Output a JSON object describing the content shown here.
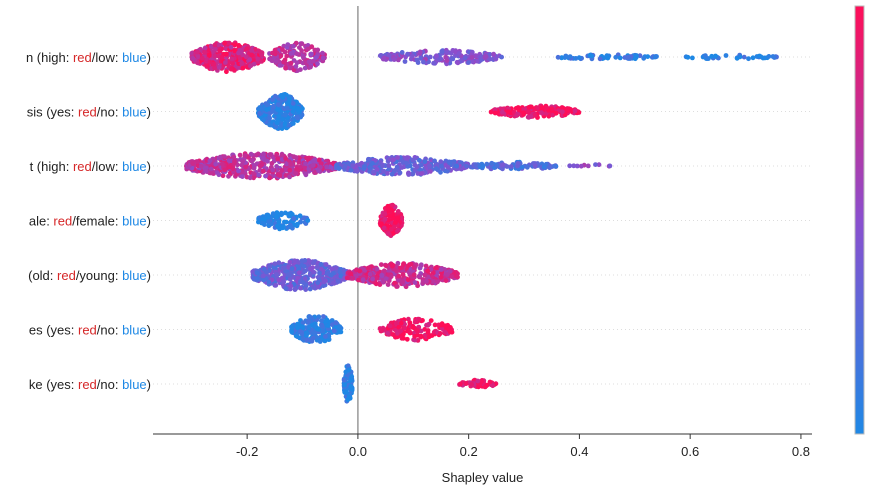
{
  "chart_data": {
    "type": "scatter",
    "subtype": "beeswarm",
    "title": "",
    "xlabel": "Shapley value",
    "xlim": [
      -0.37,
      0.82
    ],
    "xticks": [
      -0.2,
      0.0,
      0.2,
      0.4,
      0.6,
      0.8
    ],
    "xtick_labels": [
      "-0.2",
      "0.0",
      "0.2",
      "0.4",
      "0.6",
      "0.8"
    ],
    "zero_line": 0.0,
    "colors": {
      "high": "#ff0d57",
      "low": "#1e88e5",
      "mid": "#8a4fcf",
      "axis": "#333333",
      "zero": "#999999",
      "grid": "#dddddd"
    },
    "features": [
      {
        "label_parts": [
          {
            "text": "n (high: ",
            "color": "#222222"
          },
          {
            "text": "red",
            "color": "#d62728"
          },
          {
            "text": "/low: ",
            "color": "#222222"
          },
          {
            "text": "blue",
            "color": "#1e88e5"
          },
          {
            "text": ")",
            "color": "#222222"
          }
        ],
        "clusters": [
          {
            "min": -0.3,
            "max": -0.17,
            "n": 420,
            "width": 15,
            "value": 0.85
          },
          {
            "min": -0.16,
            "max": -0.06,
            "n": 150,
            "width": 14,
            "value": 0.7
          },
          {
            "min": 0.04,
            "max": 0.26,
            "n": 170,
            "width": 7,
            "value": 0.45
          },
          {
            "min": 0.36,
            "max": 0.54,
            "n": 60,
            "width": 2.5,
            "value": 0.08
          },
          {
            "min": 0.58,
            "max": 0.76,
            "n": 35,
            "width": 2,
            "value": 0.05
          }
        ]
      },
      {
        "label_parts": [
          {
            "text": "sis (yes: ",
            "color": "#222222"
          },
          {
            "text": "red",
            "color": "#d62728"
          },
          {
            "text": "/no: ",
            "color": "#222222"
          },
          {
            "text": "blue",
            "color": "#1e88e5"
          },
          {
            "text": ")",
            "color": "#222222"
          }
        ],
        "clusters": [
          {
            "min": -0.18,
            "max": -0.1,
            "n": 260,
            "width": 18,
            "value": 0.05
          },
          {
            "min": 0.24,
            "max": 0.4,
            "n": 170,
            "width": 6,
            "value": 0.95
          }
        ]
      },
      {
        "label_parts": [
          {
            "text": "t (high: ",
            "color": "#222222"
          },
          {
            "text": "red",
            "color": "#d62728"
          },
          {
            "text": "/low: ",
            "color": "#222222"
          },
          {
            "text": "blue",
            "color": "#1e88e5"
          },
          {
            "text": ")",
            "color": "#222222"
          }
        ],
        "clusters": [
          {
            "min": -0.31,
            "max": -0.04,
            "n": 520,
            "width": 13,
            "value": 0.7
          },
          {
            "min": -0.04,
            "max": 0.2,
            "n": 300,
            "width": 9,
            "value": 0.35
          },
          {
            "min": 0.2,
            "max": 0.36,
            "n": 90,
            "width": 4,
            "value": 0.25
          },
          {
            "min": 0.38,
            "max": 0.46,
            "n": 10,
            "width": 1.5,
            "value": 0.5
          }
        ]
      },
      {
        "label_parts": [
          {
            "text": "ale: ",
            "color": "#222222"
          },
          {
            "text": "red",
            "color": "#d62728"
          },
          {
            "text": "/female: ",
            "color": "#222222"
          },
          {
            "text": "blue",
            "color": "#1e88e5"
          },
          {
            "text": ")",
            "color": "#222222"
          }
        ],
        "clusters": [
          {
            "min": -0.18,
            "max": -0.09,
            "n": 120,
            "width": 9,
            "value": 0.05
          },
          {
            "min": 0.04,
            "max": 0.08,
            "n": 150,
            "width": 16,
            "value": 0.95
          }
        ]
      },
      {
        "label_parts": [
          {
            "text": "(old: ",
            "color": "#222222"
          },
          {
            "text": "red",
            "color": "#d62728"
          },
          {
            "text": "/young: ",
            "color": "#222222"
          },
          {
            "text": "blue",
            "color": "#1e88e5"
          },
          {
            "text": ")",
            "color": "#222222"
          }
        ],
        "clusters": [
          {
            "min": -0.19,
            "max": -0.02,
            "n": 420,
            "width": 15,
            "value": 0.35
          },
          {
            "min": -0.02,
            "max": 0.18,
            "n": 380,
            "width": 12,
            "value": 0.75
          }
        ]
      },
      {
        "label_parts": [
          {
            "text": "es (yes: ",
            "color": "#222222"
          },
          {
            "text": "red",
            "color": "#d62728"
          },
          {
            "text": "/no: ",
            "color": "#222222"
          },
          {
            "text": "blue",
            "color": "#1e88e5"
          },
          {
            "text": ")",
            "color": "#222222"
          }
        ],
        "clusters": [
          {
            "min": -0.12,
            "max": -0.03,
            "n": 200,
            "width": 14,
            "value": 0.05
          },
          {
            "min": 0.04,
            "max": 0.17,
            "n": 150,
            "width": 11,
            "value": 0.95
          }
        ]
      },
      {
        "label_parts": [
          {
            "text": "ke (yes: ",
            "color": "#222222"
          },
          {
            "text": "red",
            "color": "#d62728"
          },
          {
            "text": "/no: ",
            "color": "#222222"
          },
          {
            "text": "blue",
            "color": "#1e88e5"
          },
          {
            "text": ")",
            "color": "#222222"
          }
        ],
        "clusters": [
          {
            "min": -0.025,
            "max": -0.01,
            "n": 80,
            "width": 20,
            "value": 0.05
          },
          {
            "min": 0.18,
            "max": 0.25,
            "n": 50,
            "width": 4,
            "value": 0.95
          }
        ]
      }
    ]
  }
}
